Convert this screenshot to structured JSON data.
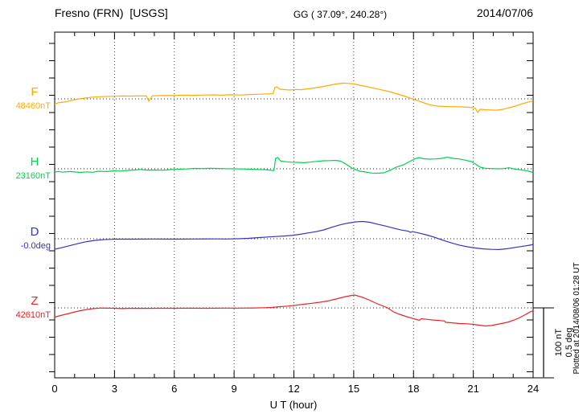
{
  "header": {
    "station_title": "Fresno (FRN)  [USGS]",
    "geographic_coords": "GG ( 37.09°, 240.28°)",
    "date": "2014/07/06"
  },
  "footer": {
    "plotted_at": "Plotted at 2014/08/06 01:28 UT"
  },
  "scale_bar": {
    "labels": [
      "100 nT",
      "0.5 deg"
    ],
    "nT": 100,
    "deg": 0.5
  },
  "chart_data": {
    "type": "line",
    "title": "Fresno (FRN)  [USGS]",
    "subtitle": "GG ( 37.09°, 240.28°)",
    "date": "2014/07/06",
    "xlabel": "U T (hour)",
    "x_ticks": [
      0,
      3,
      6,
      9,
      12,
      15,
      18,
      21,
      24
    ],
    "x_range": [
      0,
      24
    ],
    "grid": "dotted vertical every 3 hours, dotted horizontal baseline per trace",
    "legend_position": "left margin channel labels",
    "series": [
      {
        "name": "F",
        "unit": "nT",
        "baseline_label": "48460nT",
        "baseline_value": 48460,
        "color": "#FFAA00",
        "points": [
          [
            0,
            -7.5
          ],
          [
            0.2,
            -5.5
          ],
          [
            0.5,
            -4.5
          ],
          [
            0.8,
            -2.5
          ],
          [
            1.1,
            -0.5
          ],
          [
            1.5,
            1
          ],
          [
            1.9,
            2.5
          ],
          [
            2.4,
            3.3
          ],
          [
            3,
            3.8
          ],
          [
            3.4,
            4.2
          ],
          [
            3.8,
            3.9
          ],
          [
            4.2,
            4.4
          ],
          [
            4.6,
            4.2
          ],
          [
            4.72,
            -3.2
          ],
          [
            4.9,
            4.4
          ],
          [
            5.4,
            4.8
          ],
          [
            6,
            5
          ],
          [
            6.5,
            5.3
          ],
          [
            7,
            5.1
          ],
          [
            7.5,
            5.6
          ],
          [
            8,
            5.8
          ],
          [
            8.3,
            5.4
          ],
          [
            8.8,
            5.9
          ],
          [
            9.3,
            5.6
          ],
          [
            9.8,
            6.3
          ],
          [
            10.3,
            6.8
          ],
          [
            10.7,
            7.2
          ],
          [
            10.95,
            7.4
          ],
          [
            11.05,
            16.5
          ],
          [
            11.15,
            17.5
          ],
          [
            11.3,
            14
          ],
          [
            11.5,
            13.5
          ],
          [
            11.8,
            12.8
          ],
          [
            12.1,
            13.6
          ],
          [
            12.35,
            13.2
          ],
          [
            12.7,
            14.5
          ],
          [
            13,
            15.7
          ],
          [
            13.4,
            17.5
          ],
          [
            13.8,
            19.8
          ],
          [
            14.1,
            21.5
          ],
          [
            14.45,
            22.8
          ],
          [
            14.75,
            22.3
          ],
          [
            15.05,
            21.5
          ],
          [
            15.3,
            19.8
          ],
          [
            15.6,
            18
          ],
          [
            16,
            15.5
          ],
          [
            16.4,
            13
          ],
          [
            16.8,
            10.5
          ],
          [
            17.2,
            7
          ],
          [
            17.6,
            3.5
          ],
          [
            18,
            -0.5
          ],
          [
            18.4,
            -4.5
          ],
          [
            18.8,
            -8.5
          ],
          [
            19.2,
            -10.5
          ],
          [
            19.6,
            -11
          ],
          [
            20,
            -11.3
          ],
          [
            20.4,
            -11.6
          ],
          [
            20.8,
            -12.2
          ],
          [
            21.1,
            -13.4
          ],
          [
            21.22,
            -19.8
          ],
          [
            21.35,
            -15
          ],
          [
            21.6,
            -15.8
          ],
          [
            21.9,
            -16.2
          ],
          [
            22.2,
            -16.4
          ],
          [
            22.5,
            -15
          ],
          [
            22.8,
            -12.8
          ],
          [
            23.1,
            -10.5
          ],
          [
            23.4,
            -7.6
          ],
          [
            23.7,
            -5
          ],
          [
            24,
            -3
          ]
        ]
      },
      {
        "name": "H",
        "unit": "nT",
        "baseline_label": "23160nT",
        "baseline_value": 23160,
        "color": "#00D34B",
        "points": [
          [
            0,
            -4.7
          ],
          [
            0.2,
            -3.8
          ],
          [
            0.4,
            -4.9
          ],
          [
            0.7,
            -4
          ],
          [
            1,
            -4.5
          ],
          [
            1.3,
            -5.2
          ],
          [
            1.6,
            -4.4
          ],
          [
            1.9,
            -5
          ],
          [
            2.2,
            -3.5
          ],
          [
            2.6,
            -3.9
          ],
          [
            3,
            -2.9
          ],
          [
            3.3,
            -3.3
          ],
          [
            3.7,
            -2.2
          ],
          [
            4,
            -1.7
          ],
          [
            4.3,
            -0.9
          ],
          [
            4.6,
            -1.9
          ],
          [
            5,
            -1.7
          ],
          [
            5.4,
            -2.1
          ],
          [
            5.8,
            -1.2
          ],
          [
            6.2,
            -0.6
          ],
          [
            6.6,
            -0.2
          ],
          [
            7,
            0.6
          ],
          [
            7.4,
            0.4
          ],
          [
            7.8,
            0.7
          ],
          [
            8.2,
            0.5
          ],
          [
            8.6,
            0.2
          ],
          [
            9,
            0
          ],
          [
            9.4,
            -0.2
          ],
          [
            9.8,
            -0.6
          ],
          [
            10.2,
            -0.9
          ],
          [
            10.6,
            -1.3
          ],
          [
            10.9,
            -2.3
          ],
          [
            11.0,
            -2.5
          ],
          [
            11.08,
            15
          ],
          [
            11.18,
            16.3
          ],
          [
            11.35,
            11
          ],
          [
            11.6,
            10.2
          ],
          [
            11.9,
            9.5
          ],
          [
            12.2,
            9.3
          ],
          [
            12.5,
            8.8
          ],
          [
            12.8,
            9.6
          ],
          [
            12.95,
            10.2
          ],
          [
            13.2,
            10.8
          ],
          [
            13.5,
            11.6
          ],
          [
            13.8,
            11.9
          ],
          [
            14.1,
            12.2
          ],
          [
            14.35,
            11
          ],
          [
            14.6,
            7
          ],
          [
            14.95,
            0.5
          ],
          [
            15.3,
            -3.5
          ],
          [
            15.6,
            -4.7
          ],
          [
            15.9,
            -6.2
          ],
          [
            16.2,
            -6.4
          ],
          [
            16.5,
            -5.8
          ],
          [
            16.8,
            -2.5
          ],
          [
            17.1,
            2
          ],
          [
            17.5,
            5.8
          ],
          [
            17.8,
            10.5
          ],
          [
            18.1,
            14.8
          ],
          [
            18.3,
            16.3
          ],
          [
            18.5,
            14.5
          ],
          [
            18.8,
            14
          ],
          [
            19.1,
            14.3
          ],
          [
            19.4,
            15
          ],
          [
            19.7,
            16.9
          ],
          [
            20,
            15
          ],
          [
            20.3,
            14.3
          ],
          [
            20.6,
            12.5
          ],
          [
            20.9,
            10.5
          ],
          [
            21.1,
            7
          ],
          [
            21.35,
            2.3
          ],
          [
            21.6,
            0.8
          ],
          [
            21.9,
            0.3
          ],
          [
            22.2,
            0
          ],
          [
            22.5,
            0.3
          ],
          [
            22.8,
            1.5
          ],
          [
            23.1,
            -0.5
          ],
          [
            23.4,
            -1.5
          ],
          [
            23.7,
            -2.9
          ],
          [
            24,
            -5.2
          ]
        ]
      },
      {
        "name": "D",
        "unit": "deg",
        "baseline_label": "-0.0deg",
        "baseline_value": -0.0,
        "color": "#3333CC",
        "points": [
          [
            0,
            -0.076
          ],
          [
            0.4,
            -0.063
          ],
          [
            0.8,
            -0.048
          ],
          [
            1.2,
            -0.034
          ],
          [
            1.6,
            -0.021
          ],
          [
            2,
            -0.012
          ],
          [
            2.4,
            -0.007
          ],
          [
            2.8,
            -0.004
          ],
          [
            3.2,
            -0.003
          ],
          [
            4,
            -0.003
          ],
          [
            5,
            -0.002
          ],
          [
            6,
            -0.003
          ],
          [
            7,
            -0.002
          ],
          [
            8,
            -0.001
          ],
          [
            8.6,
            -0.002
          ],
          [
            9.2,
            0
          ],
          [
            9.7,
            0.003
          ],
          [
            10.2,
            0.008
          ],
          [
            10.7,
            0.013
          ],
          [
            11.1,
            0.016
          ],
          [
            11.5,
            0.02
          ],
          [
            11.9,
            0.024
          ],
          [
            12.3,
            0.032
          ],
          [
            12.7,
            0.042
          ],
          [
            13.1,
            0.051
          ],
          [
            13.5,
            0.064
          ],
          [
            13.9,
            0.083
          ],
          [
            14.3,
            0.1
          ],
          [
            14.7,
            0.113
          ],
          [
            15.1,
            0.122
          ],
          [
            15.45,
            0.125
          ],
          [
            15.8,
            0.119
          ],
          [
            16.2,
            0.105
          ],
          [
            16.6,
            0.092
          ],
          [
            17,
            0.077
          ],
          [
            17.4,
            0.063
          ],
          [
            17.75,
            0.054
          ],
          [
            17.85,
            0.046
          ],
          [
            17.95,
            0.052
          ],
          [
            18.3,
            0.04
          ],
          [
            18.7,
            0.026
          ],
          [
            19.1,
            0.008
          ],
          [
            19.5,
            -0.012
          ],
          [
            19.9,
            -0.03
          ],
          [
            20.3,
            -0.046
          ],
          [
            20.7,
            -0.058
          ],
          [
            21.1,
            -0.067
          ],
          [
            21.5,
            -0.073
          ],
          [
            21.9,
            -0.077
          ],
          [
            22.3,
            -0.078
          ],
          [
            22.7,
            -0.072
          ],
          [
            23.1,
            -0.063
          ],
          [
            23.5,
            -0.054
          ],
          [
            23.8,
            -0.047
          ],
          [
            24,
            -0.041
          ]
        ]
      },
      {
        "name": "Z",
        "unit": "nT",
        "baseline_label": "42610nT",
        "baseline_value": 42610,
        "color": "#EE2222",
        "points": [
          [
            0,
            -13.4
          ],
          [
            0.3,
            -11
          ],
          [
            0.7,
            -8.1
          ],
          [
            1.1,
            -5.2
          ],
          [
            1.5,
            -2.9
          ],
          [
            1.9,
            -1.2
          ],
          [
            2.3,
            -0.2
          ],
          [
            2.7,
            -0.5
          ],
          [
            3,
            -0.6
          ],
          [
            3.4,
            -1
          ],
          [
            3.8,
            -0.6
          ],
          [
            4.5,
            -0.7
          ],
          [
            5.2,
            -0.6
          ],
          [
            6,
            -0.6
          ],
          [
            6.8,
            -0.5
          ],
          [
            7.6,
            -0.6
          ],
          [
            8.4,
            -0.4
          ],
          [
            9.2,
            -0.3
          ],
          [
            10,
            -0.1
          ],
          [
            10.5,
            0.2
          ],
          [
            10.9,
            0.6
          ],
          [
            11.3,
            1.7
          ],
          [
            11.7,
            2.6
          ],
          [
            12.1,
            3.8
          ],
          [
            12.5,
            5.2
          ],
          [
            12.9,
            6.6
          ],
          [
            13.3,
            8.1
          ],
          [
            13.7,
            10
          ],
          [
            14.1,
            12.8
          ],
          [
            14.5,
            15.7
          ],
          [
            14.8,
            17.4
          ],
          [
            15.05,
            18.6
          ],
          [
            15.25,
            17
          ],
          [
            15.5,
            14.5
          ],
          [
            15.8,
            11
          ],
          [
            16.1,
            7
          ],
          [
            16.4,
            3.5
          ],
          [
            16.7,
            0
          ],
          [
            17,
            -5.8
          ],
          [
            17.3,
            -9.3
          ],
          [
            17.6,
            -12.2
          ],
          [
            17.9,
            -14.8
          ],
          [
            18.15,
            -16.9
          ],
          [
            18.3,
            -18
          ],
          [
            18.38,
            -15.7
          ],
          [
            18.7,
            -16.6
          ],
          [
            19,
            -17.5
          ],
          [
            19.3,
            -18.3
          ],
          [
            19.55,
            -19
          ],
          [
            19.62,
            -20.9
          ],
          [
            19.9,
            -21.5
          ],
          [
            20.3,
            -22.7
          ],
          [
            20.7,
            -23
          ],
          [
            21,
            -23.8
          ],
          [
            21.3,
            -25
          ],
          [
            21.6,
            -26.2
          ],
          [
            21.9,
            -25.6
          ],
          [
            22.3,
            -23.3
          ],
          [
            22.7,
            -20.9
          ],
          [
            23,
            -18
          ],
          [
            23.3,
            -14.5
          ],
          [
            23.6,
            -9.9
          ],
          [
            23.8,
            -6.6
          ],
          [
            24,
            -4.1
          ]
        ]
      }
    ]
  }
}
